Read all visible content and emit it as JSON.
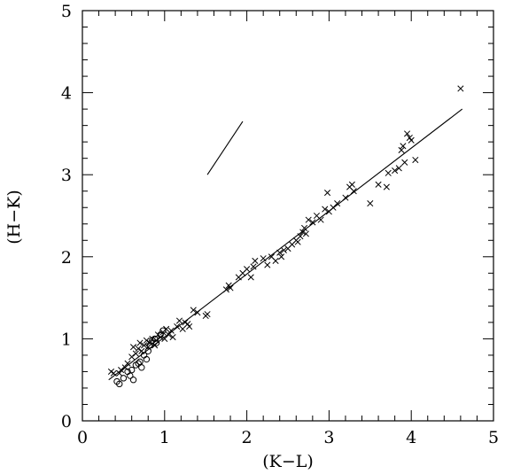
{
  "chart_data": {
    "type": "scatter",
    "xlabel": "(K−L)",
    "ylabel": "(H−K)",
    "xlim": [
      0,
      5
    ],
    "ylim": [
      0,
      5
    ],
    "x_ticks": [
      "0",
      "1",
      "2",
      "3",
      "4",
      "5"
    ],
    "y_ticks": [
      "0",
      "1",
      "2",
      "3",
      "4",
      "5"
    ],
    "grid": false,
    "colors": {
      "axis": "#000000",
      "marker": "#000000",
      "line": "#000000"
    },
    "series": [
      {
        "marker": "cross",
        "points": [
          [
            0.35,
            0.6
          ],
          [
            0.38,
            0.58
          ],
          [
            0.45,
            0.58
          ],
          [
            0.47,
            0.62
          ],
          [
            0.52,
            0.65
          ],
          [
            0.55,
            0.7
          ],
          [
            0.6,
            0.78
          ],
          [
            0.62,
            0.9
          ],
          [
            0.65,
            0.82
          ],
          [
            0.68,
            0.88
          ],
          [
            0.7,
            0.95
          ],
          [
            0.72,
            0.85
          ],
          [
            0.75,
            0.92
          ],
          [
            0.78,
            0.98
          ],
          [
            0.8,
            0.9
          ],
          [
            0.82,
            0.95
          ],
          [
            0.85,
            1.0
          ],
          [
            0.88,
            0.92
          ],
          [
            0.9,
            0.98
          ],
          [
            0.92,
            1.05
          ],
          [
            0.95,
            1.02
          ],
          [
            0.98,
            1.08
          ],
          [
            1.0,
            1.0
          ],
          [
            1.02,
            1.12
          ],
          [
            1.05,
            1.05
          ],
          [
            1.08,
            1.1
          ],
          [
            1.1,
            1.02
          ],
          [
            1.15,
            1.15
          ],
          [
            1.18,
            1.22
          ],
          [
            1.22,
            1.12
          ],
          [
            1.25,
            1.2
          ],
          [
            1.28,
            1.18
          ],
          [
            1.3,
            1.15
          ],
          [
            1.35,
            1.35
          ],
          [
            1.4,
            1.32
          ],
          [
            1.5,
            1.28
          ],
          [
            1.52,
            1.3
          ],
          [
            1.75,
            1.6
          ],
          [
            1.78,
            1.65
          ],
          [
            1.8,
            1.62
          ],
          [
            1.9,
            1.75
          ],
          [
            1.95,
            1.8
          ],
          [
            2.0,
            1.85
          ],
          [
            2.05,
            1.75
          ],
          [
            2.08,
            1.88
          ],
          [
            2.1,
            1.95
          ],
          [
            2.2,
            1.98
          ],
          [
            2.25,
            1.9
          ],
          [
            2.3,
            2.0
          ],
          [
            2.35,
            1.95
          ],
          [
            2.4,
            2.05
          ],
          [
            2.42,
            2.0
          ],
          [
            2.45,
            2.08
          ],
          [
            2.5,
            2.1
          ],
          [
            2.55,
            2.15
          ],
          [
            2.6,
            2.2
          ],
          [
            2.62,
            2.18
          ],
          [
            2.65,
            2.25
          ],
          [
            2.68,
            2.3
          ],
          [
            2.7,
            2.35
          ],
          [
            2.72,
            2.28
          ],
          [
            2.75,
            2.45
          ],
          [
            2.8,
            2.42
          ],
          [
            2.85,
            2.5
          ],
          [
            2.9,
            2.45
          ],
          [
            2.95,
            2.58
          ],
          [
            2.98,
            2.78
          ],
          [
            3.0,
            2.55
          ],
          [
            3.05,
            2.6
          ],
          [
            3.1,
            2.65
          ],
          [
            3.2,
            2.72
          ],
          [
            3.25,
            2.85
          ],
          [
            3.28,
            2.88
          ],
          [
            3.3,
            2.8
          ],
          [
            3.5,
            2.65
          ],
          [
            3.6,
            2.88
          ],
          [
            3.7,
            2.85
          ],
          [
            3.72,
            3.02
          ],
          [
            3.8,
            3.05
          ],
          [
            3.85,
            3.08
          ],
          [
            3.88,
            3.3
          ],
          [
            3.9,
            3.35
          ],
          [
            3.92,
            3.15
          ],
          [
            3.95,
            3.5
          ],
          [
            3.98,
            3.45
          ],
          [
            4.0,
            3.42
          ],
          [
            4.05,
            3.18
          ],
          [
            4.6,
            4.05
          ]
        ]
      },
      {
        "marker": "circle",
        "points": [
          [
            0.42,
            0.48
          ],
          [
            0.45,
            0.45
          ],
          [
            0.5,
            0.52
          ],
          [
            0.55,
            0.6
          ],
          [
            0.58,
            0.55
          ],
          [
            0.6,
            0.62
          ],
          [
            0.62,
            0.5
          ],
          [
            0.65,
            0.68
          ],
          [
            0.68,
            0.7
          ],
          [
            0.7,
            0.72
          ],
          [
            0.72,
            0.65
          ],
          [
            0.75,
            0.8
          ],
          [
            0.78,
            0.75
          ],
          [
            0.8,
            0.85
          ],
          [
            0.82,
            0.92
          ],
          [
            0.85,
            0.98
          ],
          [
            0.88,
            1.0
          ],
          [
            0.9,
            0.95
          ],
          [
            0.95,
            1.05
          ],
          [
            0.98,
            1.1
          ]
        ]
      }
    ],
    "lines": [
      {
        "points": [
          [
            0.32,
            0.5
          ],
          [
            4.62,
            3.8
          ]
        ]
      },
      {
        "points": [
          [
            1.52,
            3.0
          ],
          [
            1.95,
            3.65
          ]
        ]
      }
    ]
  }
}
